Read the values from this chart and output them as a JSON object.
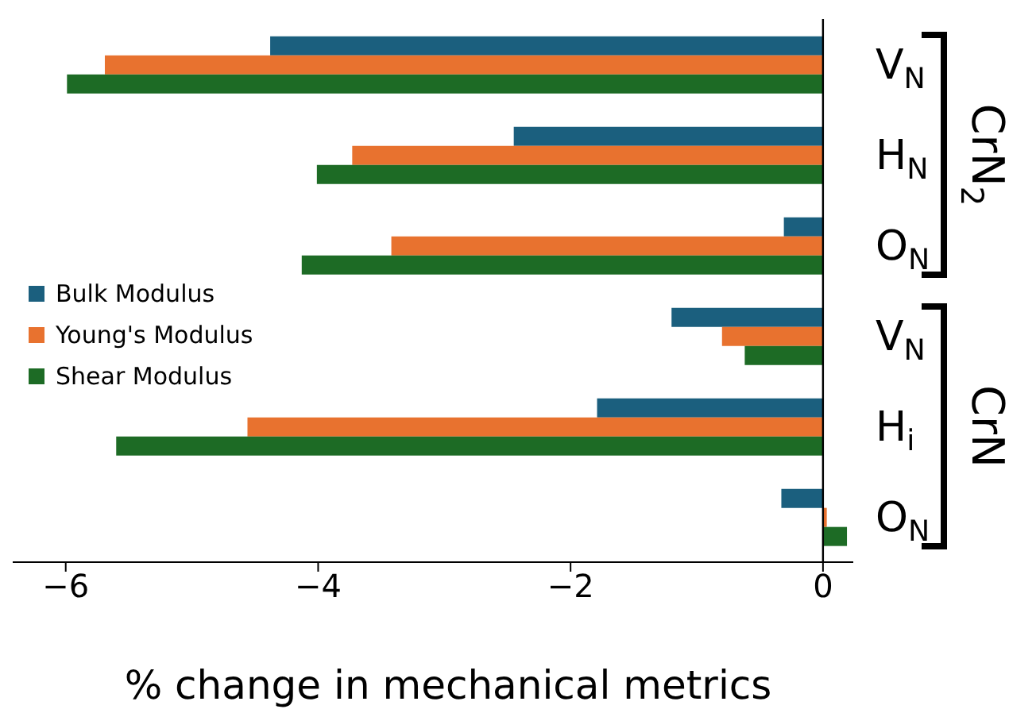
{
  "chart_data": {
    "type": "bar",
    "orientation": "horizontal",
    "xlabel": "% change in mechanical metrics",
    "categories": [
      "V$_{N}$",
      "H$_{N}$",
      "O$_{N}$",
      "V$_{N}$",
      "H$_{i}$",
      "O$_{N}$"
    ],
    "series": [
      {
        "name": "Bulk Modulus",
        "color": "#1b5f7e",
        "values": [
          -4.38,
          -2.45,
          -0.31,
          -1.2,
          -1.79,
          -0.33
        ]
      },
      {
        "name": "Young's Modulus",
        "color": "#e8722f",
        "values": [
          -5.69,
          -3.73,
          -3.42,
          -0.8,
          -4.56,
          0.03
        ]
      },
      {
        "name": "Shear Modulus",
        "color": "#1d6b25",
        "values": [
          -5.99,
          -4.01,
          -4.13,
          -0.62,
          -5.6,
          0.19
        ]
      }
    ],
    "xlim": [
      -6.42,
      0.24
    ],
    "xticks": [
      -6,
      -4,
      -2,
      0
    ],
    "legend": "left",
    "annotations": [
      "CrN$_{2}$",
      "CrN"
    ]
  }
}
